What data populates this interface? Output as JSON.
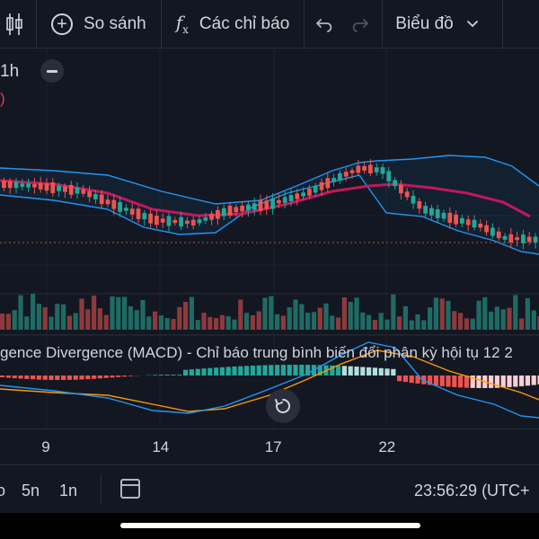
{
  "toolbar": {
    "chart_type_icon": "candles-icon",
    "compare_label": "So sánh",
    "indicators_label": "Các chỉ báo",
    "undo_icon": "undo-icon",
    "redo_icon": "redo-icon",
    "chart_menu_label": "Biểu đồ"
  },
  "legend": {
    "interval": "1h",
    "paren": ")"
  },
  "macd": {
    "title": "gence Divergence (MACD) - Chỉ báo trung bình biến đổi phân kỳ hội tụ  12 2"
  },
  "xaxis": {
    "ticks": [
      {
        "label": "9",
        "pos": 0.085
      },
      {
        "label": "14",
        "pos": 0.298
      },
      {
        "label": "17",
        "pos": 0.507
      },
      {
        "label": "22",
        "pos": 0.718
      }
    ]
  },
  "bottombar": {
    "range1": "o",
    "range2": "5n",
    "range3": "1n",
    "time": "23:56:29 (UTC+"
  },
  "colors": {
    "up": "#26a69a",
    "down": "#ef5350",
    "bb": "#2196f3",
    "basis": "#c2185b",
    "signal": "#ff9800",
    "bg": "#131722"
  }
}
